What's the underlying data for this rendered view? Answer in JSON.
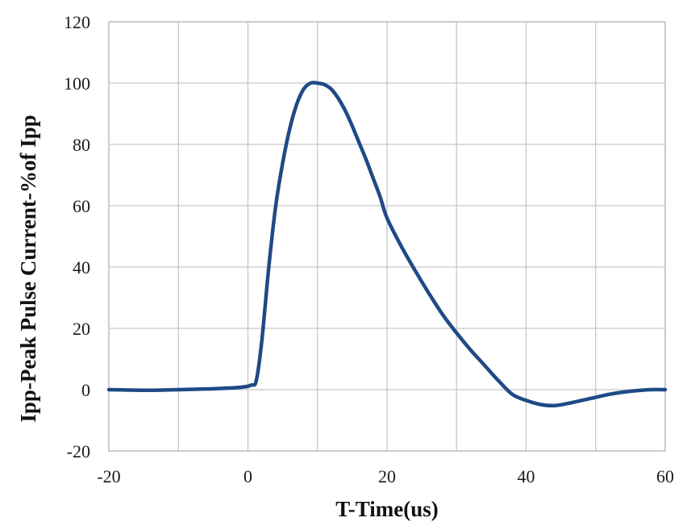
{
  "chart_data": {
    "type": "line",
    "title": "",
    "xlabel": "T-Time(us)",
    "ylabel": "Ipp-Peak Pulse Current-%of Ipp",
    "xlim": [
      -20,
      60
    ],
    "ylim": [
      -20,
      120
    ],
    "x_ticks": [
      -20,
      0,
      20,
      40,
      60
    ],
    "x_tick_labels": [
      "-20",
      "0",
      "20",
      "40",
      "60"
    ],
    "y_ticks": [
      -20,
      0,
      20,
      40,
      60,
      80,
      100,
      120
    ],
    "y_tick_labels": [
      "-20",
      "0",
      "20",
      "40",
      "60",
      "80",
      "100",
      "120"
    ],
    "x_gridlines": [
      -20,
      -10,
      0,
      10,
      20,
      30,
      40,
      50,
      60
    ],
    "y_gridlines": [
      -20,
      0,
      20,
      40,
      60,
      80,
      100,
      120
    ],
    "grid": true,
    "legend": "none",
    "line_color": "#1f4a86",
    "series": [
      {
        "x": [
          -20,
          -15,
          -10,
          -5,
          -1,
          0.5,
          1.2,
          2,
          3,
          4,
          5,
          6,
          7,
          8,
          9,
          10,
          11,
          12,
          13,
          14,
          15,
          16,
          17,
          18,
          19,
          20,
          22,
          24,
          26,
          28,
          30,
          32,
          34,
          36,
          38,
          40,
          42,
          44,
          46,
          48,
          50,
          52,
          54,
          56,
          58,
          60
        ],
        "y": [
          0,
          -0.2,
          0,
          0.3,
          0.8,
          1.5,
          3,
          16,
          40,
          60,
          74,
          85,
          93,
          98,
          100,
          100,
          99.5,
          98,
          95,
          91,
          86,
          80.5,
          75,
          69,
          63,
          56,
          47,
          39,
          31.5,
          24.5,
          18.5,
          13,
          8,
          3,
          -1.5,
          -3.5,
          -4.8,
          -5.2,
          -4.5,
          -3.5,
          -2.5,
          -1.5,
          -0.8,
          -0.3,
          0,
          0
        ]
      }
    ]
  }
}
